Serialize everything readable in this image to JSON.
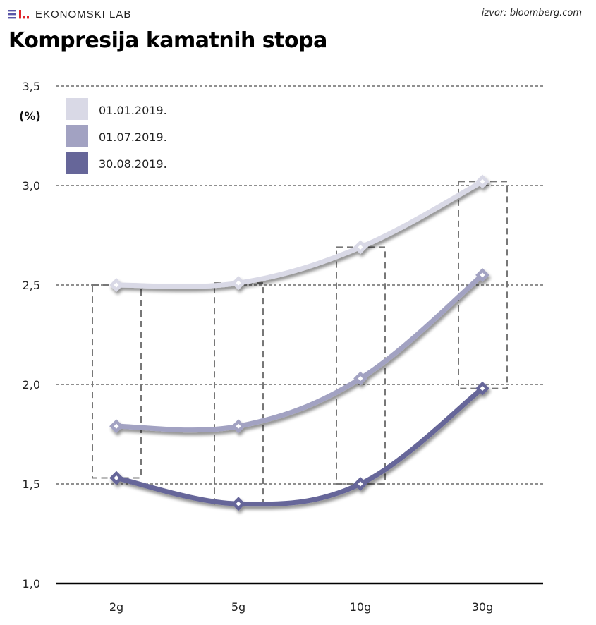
{
  "brand": {
    "name": "EKONOMSKI LAB",
    "logo_colors": [
      "#5a56a8",
      "#e0252b"
    ]
  },
  "source": "izvor: bloomberg.com",
  "title": "Kompresija kamatnih stopa",
  "chart_data": {
    "type": "line",
    "title": "Kompresija kamatnih stopa",
    "xlabel": "",
    "ylabel": "(%)",
    "categories": [
      "2g",
      "5g",
      "10g",
      "30g"
    ],
    "ylim": [
      1.0,
      3.5
    ],
    "yticks": [
      1.0,
      1.5,
      2.0,
      2.5,
      3.0,
      3.5
    ],
    "ytick_labels": [
      "1,0",
      "1,5",
      "2,0",
      "2,5",
      "3,0",
      "3,5"
    ],
    "grid": true,
    "legend_position": "top-left",
    "series": [
      {
        "name": "01.01.2019.",
        "color": "#d9d9e6",
        "values": [
          2.5,
          2.51,
          2.69,
          3.02
        ]
      },
      {
        "name": "01.07.2019.",
        "color": "#a2a2c2",
        "values": [
          1.79,
          1.79,
          2.03,
          2.55
        ]
      },
      {
        "name": "30.08.2019.",
        "color": "#666699",
        "values": [
          1.53,
          1.4,
          1.5,
          1.98
        ]
      }
    ],
    "range_boxes": [
      {
        "category": "2g",
        "low": 1.53,
        "high": 2.5
      },
      {
        "category": "5g",
        "low": 1.4,
        "high": 2.51
      },
      {
        "category": "10g",
        "low": 1.5,
        "high": 2.69
      },
      {
        "category": "30g",
        "low": 1.98,
        "high": 3.02
      }
    ]
  }
}
